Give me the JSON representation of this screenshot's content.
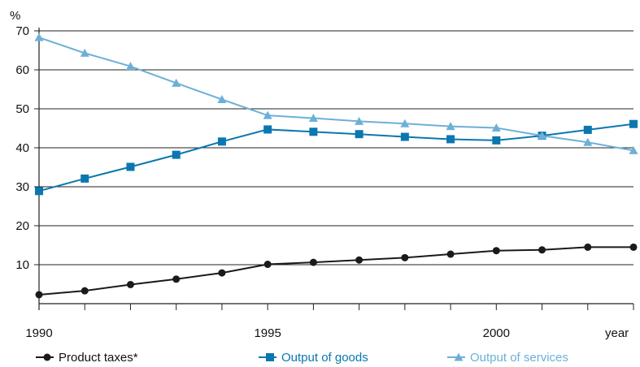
{
  "chart_data": {
    "type": "line",
    "y_unit_label": "%",
    "x_axis_label": "year",
    "ylim": [
      0,
      70
    ],
    "y_ticks": [
      10,
      20,
      30,
      40,
      50,
      60,
      70
    ],
    "x_ticks": [
      1990,
      1995,
      2000
    ],
    "x_range": [
      1990,
      2003
    ],
    "grid": "horizontal",
    "legend_position": "bottom",
    "x": [
      1990,
      1991,
      1992,
      1993,
      1994,
      1995,
      1996,
      1997,
      1998,
      1999,
      2000,
      2001,
      2002,
      2003
    ],
    "series": [
      {
        "name": "Product taxes*",
        "color": "#1a1a1a",
        "marker": "circle",
        "values": [
          2.3,
          3.3,
          4.9,
          6.3,
          7.9,
          10.1,
          10.6,
          11.2,
          11.8,
          12.7,
          13.6,
          13.8,
          14.5,
          14.5
        ]
      },
      {
        "name": "Output of goods",
        "color": "#0a77b0",
        "marker": "square",
        "values": [
          28.9,
          32.1,
          35.1,
          38.2,
          41.6,
          44.7,
          44.1,
          43.5,
          42.8,
          42.2,
          41.9,
          43.1,
          44.6,
          46.1
        ]
      },
      {
        "name": "Output of services",
        "color": "#6db0d6",
        "marker": "triangle",
        "values": [
          68.3,
          64.3,
          60.9,
          56.6,
          52.4,
          48.3,
          47.6,
          46.8,
          46.2,
          45.5,
          45.1,
          43.1,
          41.4,
          39.3
        ]
      }
    ]
  }
}
